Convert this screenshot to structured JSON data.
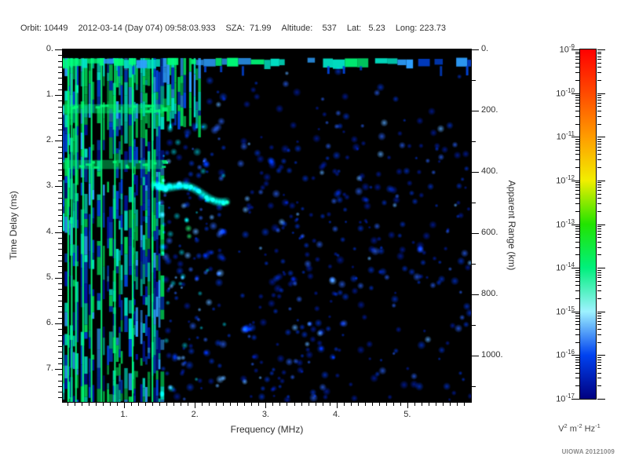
{
  "header": {
    "fields": [
      "Orbit: 10449",
      "2012-03-14 (Day 074) 09:58:03.933",
      "SZA:  71.99",
      "Altitude:    537",
      "Lat:   5.23",
      "Long: 223.73"
    ]
  },
  "credit": "UIOWA 20121009",
  "chart_data": {
    "type": "heatmap",
    "title": "",
    "xlabel": "Frequency (MHz)",
    "ylabel": "Time Delay (ms)",
    "y2label": "Apparent Range (km)",
    "background": "#000000",
    "grid": false,
    "x_axis": {
      "range_mhz": [
        0.135,
        5.9
      ],
      "tick_values": [
        1,
        2,
        3,
        4,
        5
      ],
      "tick_labels": [
        "1.",
        "2.",
        "3.",
        "4.",
        "5."
      ],
      "minor_tick_step": 0.1
    },
    "y_axis": {
      "range_ms": [
        0,
        7.72
      ],
      "tick_values": [
        0,
        1,
        2,
        3,
        4,
        5,
        6,
        7
      ],
      "tick_labels": [
        "0.",
        "1.",
        "2.",
        "3.",
        "4.",
        "5.",
        "6.",
        "7."
      ],
      "minor_tick_step": 0.125
    },
    "y2_axis": {
      "range_km": [
        0,
        1150
      ],
      "tick_values": [
        0,
        200,
        400,
        600,
        800,
        1000
      ],
      "tick_labels": [
        "0.",
        "200.",
        "400.",
        "600.",
        "800.",
        "1000."
      ],
      "minor_tick_step": 100
    },
    "colorbar": {
      "scale": "log",
      "exponents": [
        -9,
        -10,
        -11,
        -12,
        -13,
        -14,
        -15,
        -16,
        -17
      ],
      "unit_segments": [
        {
          "t": "V"
        },
        {
          "t": "2",
          "sup": true
        },
        {
          "t": " m"
        },
        {
          "t": "-2",
          "sup": true
        },
        {
          "t": " Hz"
        },
        {
          "t": "-1",
          "sup": true
        }
      ],
      "gradient_stops": [
        [
          "#ff0000",
          0
        ],
        [
          "#ff4a00",
          12.5
        ],
        [
          "#ff9c00",
          25
        ],
        [
          "#f2ee00",
          37.5
        ],
        [
          "#22e400",
          50
        ],
        [
          "#00f07c",
          62.5
        ],
        [
          "#9ef2ff",
          75
        ],
        [
          "#0042f0",
          87.5
        ],
        [
          "#000080",
          100
        ]
      ]
    },
    "features": {
      "surface_echo_band": {
        "delay_ms": [
          0.18,
          0.4
        ],
        "freq_mhz": [
          0.135,
          5.9
        ],
        "note": "bright green-cyan horizontal band across all frequencies, fading to blue above ~3.5 MHz"
      },
      "plasma_harmonic_striations": {
        "freq_mhz": [
          0.135,
          1.55
        ],
        "delay_ms": [
          0.18,
          7.72
        ],
        "note": "dense vertical green/cyan/blue stripes over full time-delay range"
      },
      "bright_harmonic_lines_mhz": [
        0.2,
        0.25,
        0.31,
        0.41,
        0.53,
        0.67,
        0.86,
        1.11,
        1.39
      ],
      "enhanced_horizontal_bands_ms": [
        [
          1.2,
          1.4
        ],
        [
          2.42,
          2.62
        ]
      ],
      "ionospheric_echo_trace": {
        "freq_mhz": [
          1.44,
          2.45
        ],
        "delay_ms": [
          2.9,
          3.3
        ],
        "note": "bright cyan-green arc"
      },
      "quiet_column_mhz": [
        2.42,
        2.68
      ],
      "noise_speckle": {
        "freq_mhz": [
          1.55,
          5.9
        ],
        "note": "scattered dark-blue blobs, density decreasing toward higher frequencies and small delays"
      }
    },
    "render_seed": 20121009
  }
}
